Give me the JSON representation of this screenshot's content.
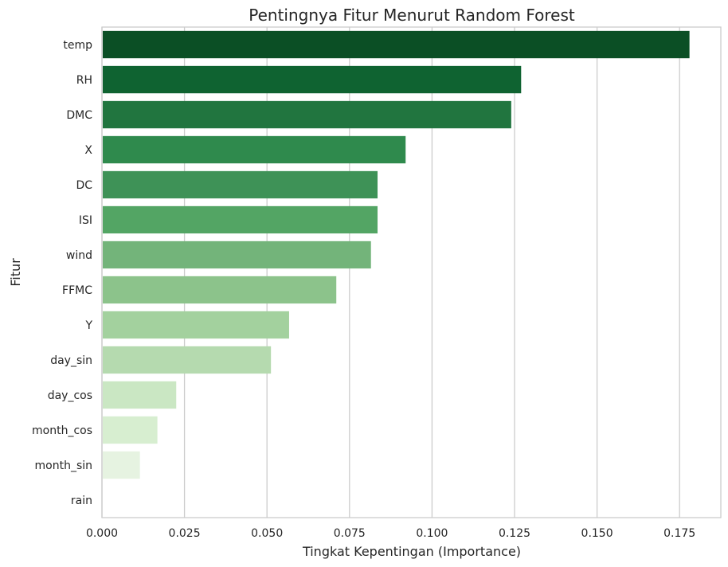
{
  "chart_data": {
    "type": "bar",
    "orientation": "horizontal",
    "title": "Pentingnya Fitur Menurut Random Forest",
    "xlabel": "Tingkat Kepentingan (Importance)",
    "ylabel": "Fitur",
    "xlim": [
      0,
      0.1875
    ],
    "xticks": [
      "0.000",
      "0.025",
      "0.050",
      "0.075",
      "0.100",
      "0.125",
      "0.150",
      "0.175"
    ],
    "grid": "vertical",
    "palette": "Greens (dark to light)",
    "categories": [
      "temp",
      "RH",
      "DMC",
      "X",
      "DC",
      "ISI",
      "wind",
      "FFMC",
      "Y",
      "day_sin",
      "day_cos",
      "month_cos",
      "month_sin",
      "rain"
    ],
    "values": [
      0.178,
      0.127,
      0.124,
      0.092,
      0.0835,
      0.0835,
      0.0815,
      0.071,
      0.0567,
      0.0512,
      0.0225,
      0.0168,
      0.0115,
      0.0
    ],
    "colors": [
      "#0b4f25",
      "#0f6331",
      "#21753f",
      "#2f8a4d",
      "#3e9257",
      "#53a564",
      "#73b47a",
      "#8cc38b",
      "#a3d19e",
      "#b5daaf",
      "#cae7c3",
      "#d7eed0",
      "#e6f3e1",
      "#f4fbf1"
    ]
  }
}
